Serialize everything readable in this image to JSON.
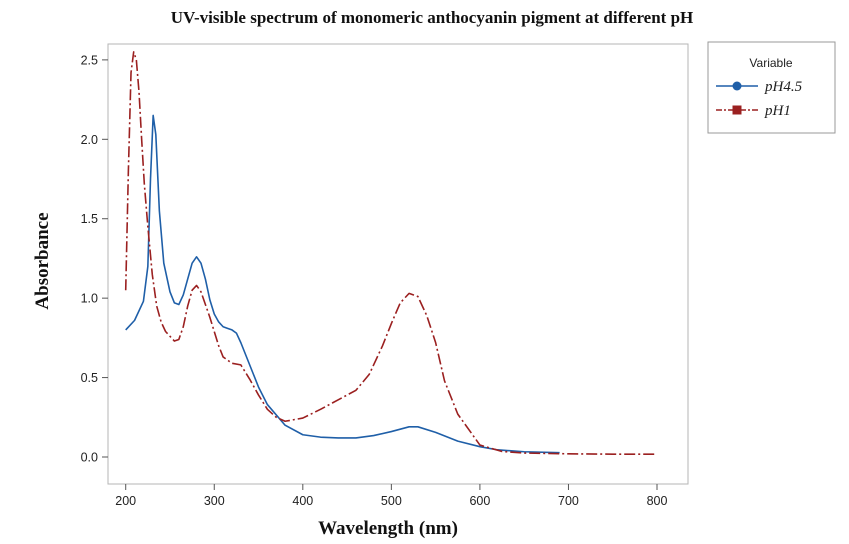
{
  "chart_data": {
    "type": "line",
    "title": "UV-visible spectrum of monomeric anthocyanin pigment at different pH",
    "xlabel": "Wavelength (nm)",
    "ylabel": "Absorbance",
    "xlim": [
      180,
      835
    ],
    "ylim": [
      -0.17,
      2.6
    ],
    "xticks": [
      200,
      300,
      400,
      500,
      600,
      700,
      800
    ],
    "yticks": [
      0.0,
      0.5,
      1.0,
      1.5,
      2.0,
      2.5
    ],
    "grid": false,
    "legend": {
      "title": "Variable",
      "placement": "right-outside-top"
    },
    "series": [
      {
        "name": "pH4.5",
        "color": "#1f5fa8",
        "marker": "circle",
        "dash": "solid",
        "x": [
          200,
          210,
          220,
          225,
          228,
          231,
          234,
          238,
          243,
          250,
          255,
          260,
          265,
          270,
          275,
          280,
          285,
          290,
          295,
          300,
          305,
          310,
          315,
          320,
          325,
          330,
          340,
          350,
          360,
          380,
          400,
          420,
          440,
          460,
          480,
          500,
          520,
          530,
          550,
          575,
          600,
          620,
          650,
          690
        ],
        "y": [
          0.8,
          0.86,
          0.98,
          1.2,
          1.75,
          2.15,
          2.03,
          1.55,
          1.22,
          1.04,
          0.97,
          0.96,
          1.02,
          1.12,
          1.22,
          1.26,
          1.22,
          1.12,
          0.99,
          0.9,
          0.85,
          0.82,
          0.81,
          0.8,
          0.78,
          0.72,
          0.58,
          0.44,
          0.33,
          0.2,
          0.14,
          0.125,
          0.12,
          0.12,
          0.135,
          0.16,
          0.19,
          0.19,
          0.155,
          0.1,
          0.065,
          0.045,
          0.033,
          0.027
        ]
      },
      {
        "name": "pH1",
        "color": "#9b2020",
        "marker": "square",
        "dash": "dash-dot",
        "x": [
          200,
          203,
          206,
          209,
          212,
          215,
          218,
          221,
          225,
          230,
          235,
          240,
          245,
          250,
          255,
          260,
          265,
          270,
          275,
          280,
          285,
          290,
          295,
          300,
          305,
          310,
          320,
          330,
          340,
          350,
          360,
          370,
          380,
          400,
          420,
          440,
          460,
          475,
          490,
          500,
          510,
          520,
          530,
          540,
          550,
          560,
          575,
          600,
          625,
          650,
          700,
          750,
          800
        ],
        "y": [
          1.05,
          1.8,
          2.42,
          2.55,
          2.5,
          2.3,
          2.0,
          1.72,
          1.45,
          1.15,
          0.95,
          0.85,
          0.79,
          0.76,
          0.73,
          0.74,
          0.82,
          0.95,
          1.05,
          1.08,
          1.04,
          0.96,
          0.88,
          0.79,
          0.7,
          0.63,
          0.59,
          0.58,
          0.49,
          0.39,
          0.3,
          0.25,
          0.225,
          0.245,
          0.3,
          0.36,
          0.42,
          0.52,
          0.7,
          0.84,
          0.97,
          1.03,
          1.01,
          0.89,
          0.72,
          0.48,
          0.27,
          0.075,
          0.035,
          0.025,
          0.02,
          0.018,
          0.018
        ]
      }
    ]
  }
}
